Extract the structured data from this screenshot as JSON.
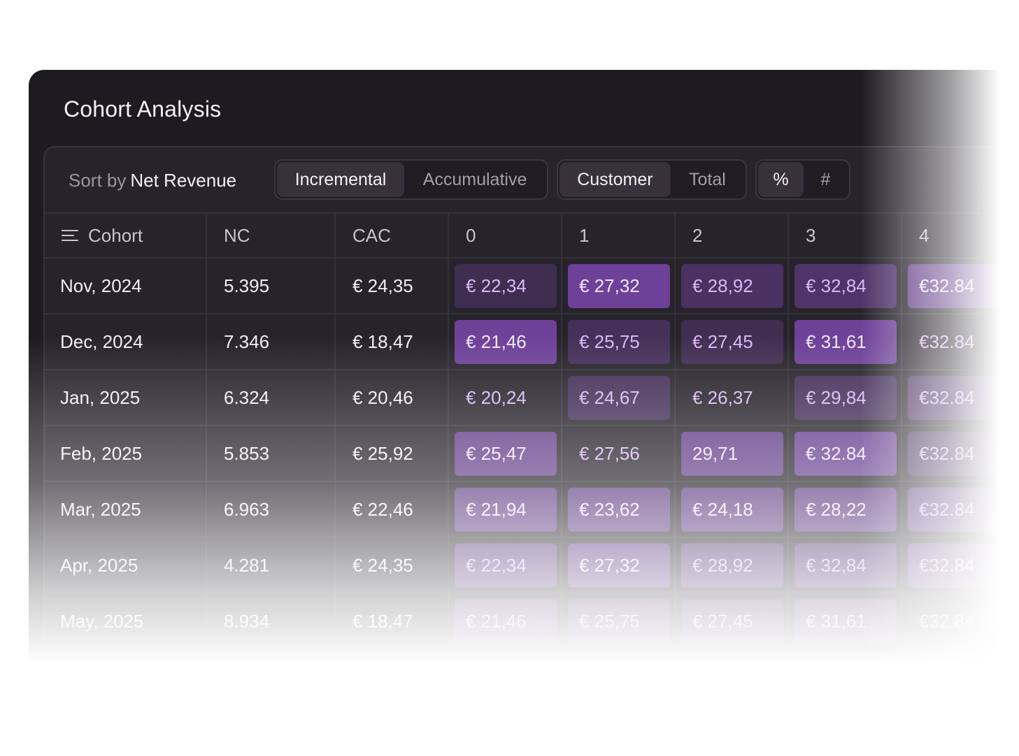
{
  "title": "Cohort Analysis",
  "sort": {
    "label": "Sort by",
    "value": "Net Revenue"
  },
  "toggles": {
    "mode": [
      {
        "label": "Incremental",
        "active": true
      },
      {
        "label": "Accumulative",
        "active": false
      }
    ],
    "scope": [
      {
        "label": "Customer",
        "active": true
      },
      {
        "label": "Total",
        "active": false
      }
    ],
    "unit": [
      {
        "label": "%",
        "active": true
      },
      {
        "label": "#",
        "active": false
      }
    ]
  },
  "columns": [
    "Cohort",
    "NC",
    "CAC",
    "0",
    "1",
    "2",
    "3",
    "4"
  ],
  "icons": {
    "cohort_header": "list-lines-icon"
  },
  "colors": {
    "accent": "#7a48b0",
    "card_bg": "#1e1b20",
    "panel_bg": "#27232a"
  },
  "rows": [
    {
      "cohort": "Nov, 2024",
      "nc": "5.395",
      "cac": "€ 24,35",
      "values": [
        "€ 22,34",
        "€ 27,32",
        "€ 28,92",
        "€ 32,84",
        "€32.84"
      ],
      "levels": [
        0.25,
        0.7,
        0.35,
        0.4,
        0.6
      ]
    },
    {
      "cohort": "Dec, 2024",
      "nc": "7.346",
      "cac": "€ 18,47",
      "values": [
        "€ 21,46",
        "€ 25,75",
        "€ 27,45",
        "€ 31,61",
        "€32.84"
      ],
      "levels": [
        0.7,
        0.3,
        0.25,
        0.7,
        0
      ]
    },
    {
      "cohort": "Jan, 2025",
      "nc": "6.324",
      "cac": "€ 20,46",
      "values": [
        "€ 20,24",
        "€ 24,67",
        "€ 26,37",
        "€ 29,84",
        "€32.84"
      ],
      "levels": [
        0,
        0.3,
        0,
        0.3,
        0.35
      ]
    },
    {
      "cohort": "Feb, 2025",
      "nc": "5.853",
      "cac": "€ 25,92",
      "values": [
        "€ 25,47",
        "€ 27,56",
        "29,71",
        "€ 32.84",
        "€32.84"
      ],
      "levels": [
        0.6,
        0,
        0.6,
        0.65,
        0.3
      ]
    },
    {
      "cohort": "Mar, 2025",
      "nc": "6.963",
      "cac": "€ 22,46",
      "values": [
        "€ 21,94",
        "€ 23,62",
        "€ 24,18",
        "€ 28,22",
        "€32.84"
      ],
      "levels": [
        0.55,
        0.55,
        0.55,
        0.55,
        0.5
      ]
    },
    {
      "cohort": "Apr, 2025",
      "nc": "4.281",
      "cac": "€ 24,35",
      "values": [
        "€ 22,34",
        "€ 27,32",
        "€ 28,92",
        "€ 32,84",
        "€32.84"
      ],
      "levels": [
        0.5,
        0.55,
        0.45,
        0.45,
        0.5
      ]
    },
    {
      "cohort": "May, 2025",
      "nc": "8.934",
      "cac": "€ 18,47",
      "values": [
        "€ 21,46",
        "€ 25,75",
        "€ 27,45",
        "€ 31,61",
        "€32.84"
      ],
      "levels": [
        0.45,
        0.4,
        0.35,
        0.45,
        0
      ]
    }
  ]
}
